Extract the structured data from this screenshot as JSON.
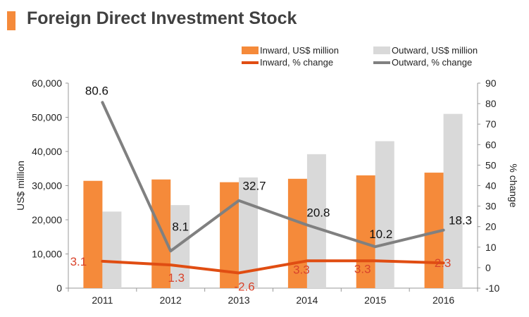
{
  "header": {
    "title": "Foreign Direct Investment Stock"
  },
  "legend": {
    "inward_stock": "Inward, US$ million",
    "outward_stock": "Outward, US$ million",
    "inward_pct": "Inward, % change",
    "outward_pct": "Outward, % change"
  },
  "colors": {
    "inward_bar": "#f58a3a",
    "outward_bar": "#d9d9d9",
    "inward_line": "#e04d12",
    "outward_line": "#808080",
    "inward_label": "#d9432b",
    "title_accent": "#f58a3a"
  },
  "chart_data": {
    "type": "bar",
    "title": "Foreign Direct Investment Stock",
    "categories": [
      "2011",
      "2012",
      "2013",
      "2014",
      "2015",
      "2016"
    ],
    "ylabel": "US$ million",
    "y2label": "% change",
    "ylim": [
      0,
      60000
    ],
    "y2lim": [
      -10,
      90
    ],
    "yticks": [
      "0",
      "10,000",
      "20,000",
      "30,000",
      "40,000",
      "50,000",
      "60,000"
    ],
    "y2ticks": [
      "-10",
      "0",
      "10",
      "20",
      "30",
      "40",
      "50",
      "60",
      "70",
      "80",
      "90"
    ],
    "series": [
      {
        "name": "Inward, US$ million",
        "type": "bar",
        "axis": "left",
        "values": [
          31400,
          31800,
          31000,
          32000,
          33000,
          33800
        ]
      },
      {
        "name": "Outward, US$ million",
        "type": "bar",
        "axis": "left",
        "values": [
          22400,
          24300,
          32400,
          39200,
          43000,
          51000
        ]
      },
      {
        "name": "Inward, % change",
        "type": "line",
        "axis": "right",
        "values": [
          3.1,
          1.3,
          -2.6,
          3.3,
          3.3,
          2.3
        ],
        "labels": [
          "3.1",
          "1.3",
          "-2.6",
          "3.3",
          "3.3",
          "2.3"
        ]
      },
      {
        "name": "Outward, % change",
        "type": "line",
        "axis": "right",
        "values": [
          80.6,
          8.1,
          32.7,
          20.8,
          10.2,
          18.3
        ],
        "labels": [
          "80.6",
          "8.1",
          "32.7",
          "20.8",
          "10.2",
          "18.3"
        ]
      }
    ]
  }
}
